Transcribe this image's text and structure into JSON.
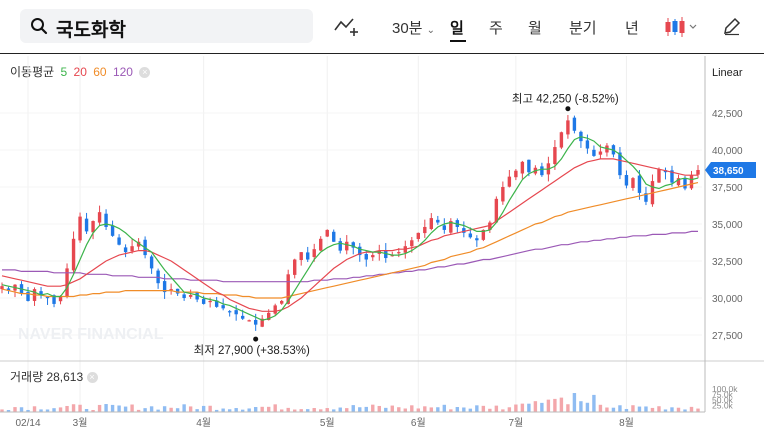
{
  "toolbar": {
    "search_value": "국도화학",
    "timeframes": [
      {
        "label": "30분",
        "dropdown": true
      },
      {
        "label": "일",
        "active": true
      },
      {
        "label": "주"
      },
      {
        "label": "월"
      },
      {
        "label": "분기"
      },
      {
        "label": "년"
      }
    ]
  },
  "legend": {
    "title": "이동평균",
    "periods": [
      {
        "label": "5",
        "color": "#3cb44b"
      },
      {
        "label": "20",
        "color": "#e6474f"
      },
      {
        "label": "60",
        "color": "#f08c28"
      },
      {
        "label": "120",
        "color": "#9b59b6"
      }
    ]
  },
  "scale_mode": "Linear",
  "current_price": "38,650",
  "annotations": {
    "high": "최고 42,250 (-8.52%)",
    "low": "최저 27,900 (+38.53%)"
  },
  "volume": {
    "label": "거래량 28,613",
    "axis_labels": [
      "100.0k",
      "75.0k",
      "50.0k",
      "25.0k"
    ]
  },
  "watermark": "NAVER FINANCIAL",
  "chart_data": {
    "type": "candlestick",
    "x_tick_labels": [
      "02/14",
      "3월",
      "4월",
      "5월",
      "6월",
      "7월",
      "8월"
    ],
    "y_tick_labels": [
      "42,500",
      "40,000",
      "37,500",
      "35,000",
      "32,500",
      "30,000",
      "27,500"
    ],
    "y_range": [
      26500,
      44000
    ],
    "high_value": 42250,
    "low_value": 27900,
    "last_close": 38650,
    "closes": [
      30800,
      30500,
      30900,
      30300,
      29800,
      30600,
      30200,
      30000,
      29600,
      30100,
      32000,
      34000,
      35500,
      34500,
      35200,
      35800,
      34800,
      34200,
      33600,
      33100,
      33500,
      33800,
      32900,
      32000,
      31000,
      30400,
      30600,
      30300,
      30000,
      30200,
      29900,
      29600,
      29800,
      29400,
      29300,
      29100,
      28900,
      28600,
      28500,
      28200,
      28600,
      29000,
      29500,
      29800,
      31600,
      32600,
      33100,
      32600,
      33300,
      34000,
      34600,
      33800,
      33200,
      33800,
      33400,
      32900,
      32600,
      32900,
      33200,
      32700,
      32900,
      33100,
      33500,
      33900,
      34400,
      34800,
      35400,
      35100,
      34600,
      35200,
      34800,
      34400,
      34100,
      33900,
      34600,
      35100,
      36700,
      37500,
      38200,
      38600,
      39200,
      38500,
      38800,
      38300,
      39100,
      40200,
      41200,
      42000,
      41300,
      40600,
      40100,
      39600,
      39900,
      40300,
      39700,
      38300,
      37600,
      38100,
      37100,
      36500,
      37900,
      38700,
      38500,
      37800,
      38100,
      37400,
      38300,
      38650
    ],
    "ma5": [
      30900,
      30800,
      30700,
      30600,
      30500,
      30400,
      30200,
      30300,
      30100,
      30100,
      30700,
      31600,
      32600,
      33600,
      34400,
      34900,
      35000,
      34900,
      34700,
      34400,
      34000,
      33700,
      33400,
      33100,
      32500,
      31900,
      31400,
      30900,
      30400,
      30300,
      30200,
      30000,
      29900,
      29800,
      29600,
      29500,
      29300,
      29100,
      28900,
      28700,
      28500,
      28600,
      28800,
      29200,
      29800,
      30500,
      31200,
      31900,
      32600,
      33100,
      33400,
      33600,
      33700,
      33600,
      33500,
      33300,
      33200,
      33100,
      33100,
      33000,
      32900,
      32900,
      33000,
      33200,
      33500,
      33900,
      34400,
      34800,
      35000,
      35100,
      35000,
      34900,
      34700,
      34500,
      34500,
      34600,
      35100,
      35800,
      36600,
      37300,
      38000,
      38400,
      38600,
      38700,
      38700,
      38900,
      39400,
      40100,
      40700,
      40900,
      40800,
      40600,
      40200,
      40100,
      40000,
      39700,
      39300,
      38900,
      38400,
      37700,
      37500,
      37400,
      37600,
      37700,
      38000,
      38100,
      38000,
      38100
    ],
    "ma20": [
      31500,
      31400,
      31300,
      31200,
      31100,
      31000,
      30900,
      30800,
      30800,
      30800,
      30900,
      31100,
      31300,
      31600,
      31900,
      32200,
      32500,
      32700,
      32900,
      33000,
      33100,
      33200,
      33200,
      33100,
      32900,
      32700,
      32500,
      32200,
      31900,
      31600,
      31300,
      31000,
      30700,
      30400,
      30200,
      29900,
      29700,
      29500,
      29300,
      29200,
      29100,
      29100,
      29100,
      29200,
      29400,
      29700,
      30000,
      30400,
      30800,
      31200,
      31600,
      32000,
      32300,
      32600,
      32800,
      33000,
      33100,
      33100,
      33200,
      33200,
      33200,
      33300,
      33300,
      33400,
      33500,
      33700,
      33900,
      34000,
      34200,
      34300,
      34400,
      34500,
      34600,
      34700,
      34800,
      34900,
      35200,
      35500,
      35800,
      36100,
      36400,
      36700,
      37000,
      37300,
      37600,
      37900,
      38200,
      38500,
      38800,
      39000,
      39200,
      39300,
      39400,
      39400,
      39400,
      39300,
      39200,
      39100,
      39000,
      38900,
      38800,
      38700,
      38600,
      38500,
      38400,
      38300,
      38300,
      38300
    ],
    "ma60": [
      30600,
      30500,
      30400,
      30300,
      30300,
      30200,
      30200,
      30100,
      30100,
      30100,
      30100,
      30100,
      30200,
      30200,
      30300,
      30300,
      30400,
      30400,
      30400,
      30500,
      30500,
      30500,
      30500,
      30500,
      30500,
      30500,
      30500,
      30400,
      30400,
      30400,
      30400,
      30300,
      30300,
      30300,
      30200,
      30200,
      30200,
      30100,
      30100,
      30000,
      30000,
      30000,
      30000,
      30000,
      30100,
      30200,
      30300,
      30400,
      30500,
      30600,
      30700,
      30800,
      30900,
      31000,
      31100,
      31200,
      31300,
      31400,
      31500,
      31600,
      31700,
      31800,
      31900,
      32000,
      32100,
      32200,
      32400,
      32500,
      32600,
      32800,
      32900,
      33000,
      33100,
      33300,
      33400,
      33600,
      33800,
      34000,
      34200,
      34400,
      34600,
      34800,
      35000,
      35100,
      35300,
      35500,
      35600,
      35800,
      35900,
      36000,
      36100,
      36200,
      36300,
      36400,
      36500,
      36600,
      36700,
      36800,
      36900,
      37000,
      37100,
      37200,
      37300,
      37400,
      37500,
      37600,
      37700,
      37800
    ],
    "ma120": [
      31900,
      31900,
      31900,
      31800,
      31800,
      31800,
      31800,
      31800,
      31700,
      31700,
      31700,
      31700,
      31700,
      31600,
      31600,
      31600,
      31600,
      31500,
      31500,
      31500,
      31500,
      31400,
      31400,
      31400,
      31400,
      31300,
      31300,
      31300,
      31300,
      31200,
      31200,
      31200,
      31200,
      31200,
      31100,
      31100,
      31100,
      31100,
      31100,
      31100,
      31100,
      31100,
      31100,
      31100,
      31100,
      31100,
      31100,
      31100,
      31200,
      31200,
      31200,
      31300,
      31300,
      31300,
      31400,
      31400,
      31500,
      31500,
      31600,
      31600,
      31700,
      31700,
      31800,
      31800,
      31900,
      31900,
      32000,
      32100,
      32100,
      32200,
      32300,
      32300,
      32400,
      32500,
      32600,
      32600,
      32700,
      32800,
      32900,
      33000,
      33100,
      33200,
      33300,
      33300,
      33400,
      33500,
      33600,
      33600,
      33700,
      33800,
      33800,
      33900,
      33900,
      34000,
      34000,
      34100,
      34100,
      34200,
      34200,
      34200,
      34300,
      34300,
      34300,
      34400,
      34400,
      34400,
      34500,
      34500
    ]
  }
}
